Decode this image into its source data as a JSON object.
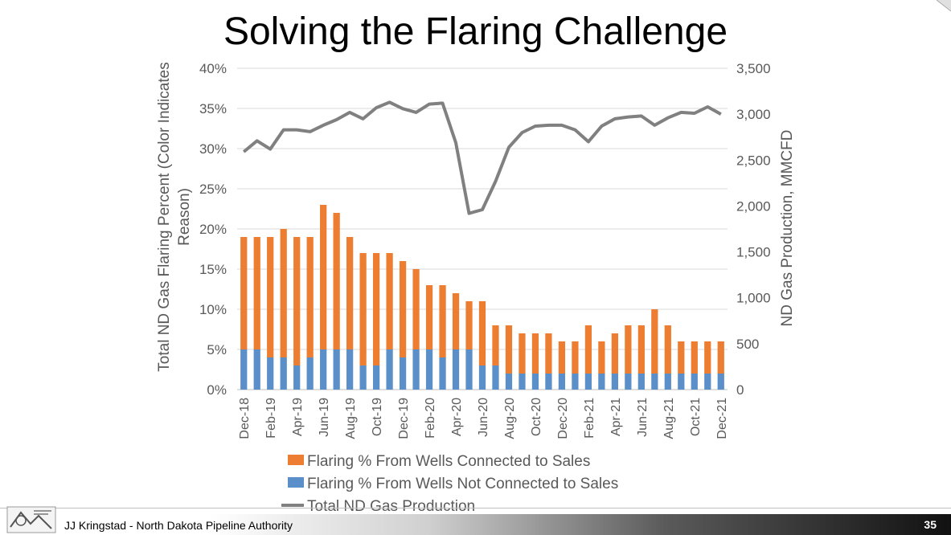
{
  "slide": {
    "title": "Solving the Flaring Challenge",
    "footer": "JJ Kringstad - North Dakota Pipeline Authority",
    "page_number": "35"
  },
  "colors": {
    "connected": "#ED7D31",
    "not_connected": "#5B8FC9",
    "production_line": "#808080",
    "grid": "#d9d9d9",
    "axis_text": "#595959"
  },
  "chart_data": {
    "type": "bar",
    "stacked": true,
    "categories": [
      "Dec-18",
      "Jan-19",
      "Feb-19",
      "Mar-19",
      "Apr-19",
      "May-19",
      "Jun-19",
      "Jul-19",
      "Aug-19",
      "Sep-19",
      "Oct-19",
      "Nov-19",
      "Dec-19",
      "Jan-20",
      "Feb-20",
      "Mar-20",
      "Apr-20",
      "May-20",
      "Jun-20",
      "Jul-20",
      "Aug-20",
      "Sep-20",
      "Oct-20",
      "Nov-20",
      "Dec-20",
      "Jan-21",
      "Feb-21",
      "Mar-21",
      "Apr-21",
      "May-21",
      "Jun-21",
      "Jul-21",
      "Aug-21",
      "Sep-21",
      "Oct-21",
      "Nov-21",
      "Dec-21"
    ],
    "tick_labels": [
      "Dec-18",
      "Feb-19",
      "Apr-19",
      "Jun-19",
      "Aug-19",
      "Oct-19",
      "Dec-19",
      "Feb-20",
      "Apr-20",
      "Jun-20",
      "Aug-20",
      "Oct-20",
      "Dec-20",
      "Feb-21",
      "Apr-21",
      "Jun-21",
      "Aug-21",
      "Oct-21",
      "Dec-21"
    ],
    "series": [
      {
        "name": "Flaring % From Wells Not Connected to Sales",
        "kind": "bar",
        "axis": "left",
        "values": [
          5,
          5,
          4,
          4,
          3,
          4,
          5,
          5,
          5,
          3,
          3,
          5,
          4,
          5,
          5,
          4,
          5,
          5,
          3,
          3,
          2,
          2,
          2,
          2,
          2,
          2,
          2,
          2,
          2,
          2,
          2,
          2,
          2,
          2,
          2,
          2,
          2
        ]
      },
      {
        "name": "Flaring % From Wells Connected to Sales",
        "kind": "bar",
        "axis": "left",
        "values": [
          14,
          14,
          15,
          16,
          16,
          15,
          18,
          17,
          14,
          14,
          14,
          12,
          12,
          10,
          8,
          9,
          7,
          6,
          8,
          5,
          6,
          5,
          5,
          5,
          4,
          4,
          6,
          4,
          5,
          6,
          6,
          8,
          6,
          4,
          4,
          4,
          4
        ]
      },
      {
        "name": "Total ND Gas Production",
        "kind": "line",
        "axis": "right",
        "values": [
          2590,
          2710,
          2620,
          2830,
          2830,
          2810,
          2880,
          2940,
          3020,
          2950,
          3070,
          3130,
          3060,
          3020,
          3110,
          3120,
          2690,
          1920,
          1960,
          2270,
          2640,
          2800,
          2870,
          2880,
          2880,
          2830,
          2700,
          2870,
          2950,
          2970,
          2980,
          2880,
          2960,
          3020,
          3010,
          3080,
          3000
        ]
      }
    ],
    "ylabel_left": [
      "Total ND Gas Flaring Percent (Color Indicates",
      "Reason)"
    ],
    "ylabel_right": "ND Gas Production, MMCFD",
    "ylim_left": [
      0,
      40
    ],
    "yticks_left": [
      "0%",
      "5%",
      "10%",
      "15%",
      "20%",
      "25%",
      "30%",
      "35%",
      "40%"
    ],
    "ylim_right": [
      0,
      3500
    ],
    "yticks_right": [
      "0",
      "500",
      "1,000",
      "1,500",
      "2,000",
      "2,500",
      "3,000",
      "3,500"
    ],
    "grid": true,
    "legend_position": "bottom"
  }
}
